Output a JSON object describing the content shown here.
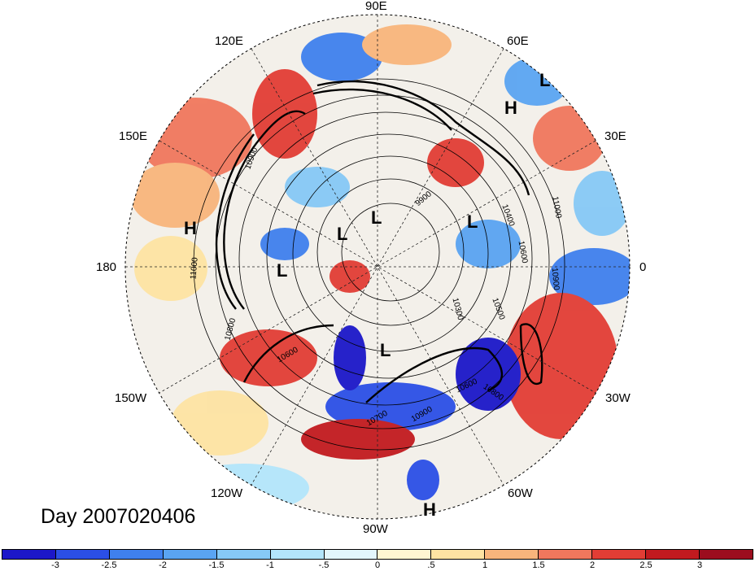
{
  "title": "Day 2007020406",
  "longitude_labels": {
    "lon_90E": "90E",
    "lon_120E": "120E",
    "lon_60E": "60E",
    "lon_150E": "150E",
    "lon_30E": "30E",
    "lon_180": "180",
    "lon_0": "0",
    "lon_150W": "150W",
    "lon_30W": "30W",
    "lon_120W": "120W",
    "lon_60W": "60W",
    "lon_90W": "90W"
  },
  "pressure_centers": [
    {
      "type": "L",
      "region": "northern Europe"
    },
    {
      "type": "H",
      "region": "Europe"
    },
    {
      "type": "H",
      "region": "north Pacific"
    },
    {
      "type": "L",
      "region": "Bering Sea"
    },
    {
      "type": "L",
      "region": "Arctic"
    },
    {
      "type": "L",
      "region": "Arctic"
    },
    {
      "type": "L",
      "region": "Greenland"
    },
    {
      "type": "L",
      "region": "Hudson Bay"
    },
    {
      "type": "H",
      "region": "South America"
    }
  ],
  "contour_labels": [
    "10900",
    "11000",
    "9900",
    "10400",
    "10600",
    "10900",
    "11000",
    "10300",
    "10500",
    "10600",
    "10800",
    "10800",
    "10700",
    "10900",
    "10600"
  ],
  "colorbar": {
    "ticks": [
      "-3",
      "-2.5",
      "-2",
      "-1.5",
      "-1",
      "-.5",
      "0",
      ".5",
      "1",
      "1.5",
      "2",
      "2.5",
      "3"
    ],
    "colors": [
      "#1c17c9",
      "#2b4fe6",
      "#3f80ee",
      "#5aa4f2",
      "#86c9f6",
      "#b3e5fb",
      "#e3f6fc",
      "#fff6d2",
      "#fde3a3",
      "#f8b57c",
      "#f0775d",
      "#e23d35",
      "#c11a1f",
      "#9c0d1e"
    ]
  }
}
